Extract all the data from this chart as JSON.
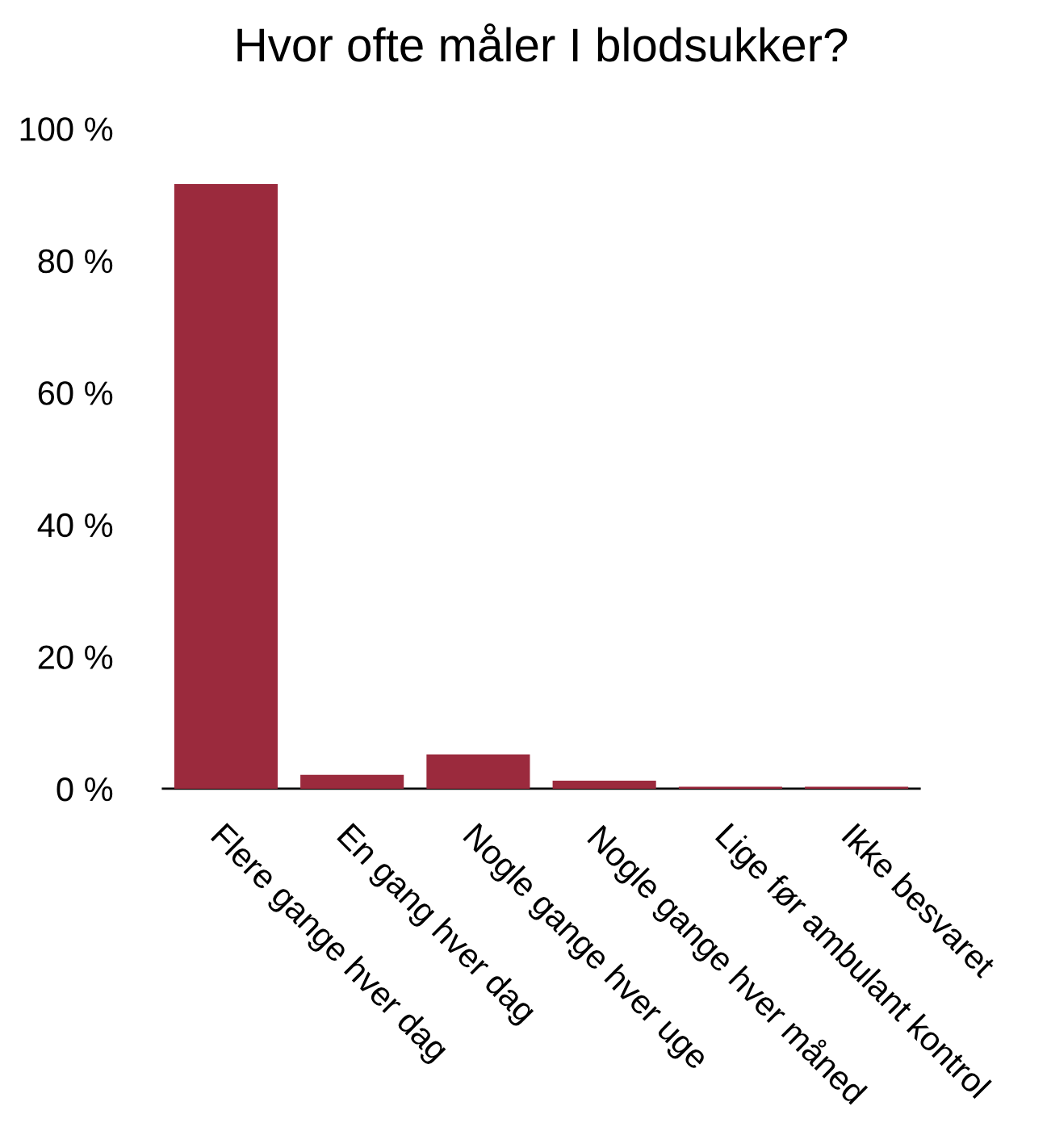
{
  "chart_data": {
    "type": "bar",
    "title": "Hvor ofte måler I blodsukker?",
    "categories": [
      "Flere gange hver dag",
      "En gang hver dag",
      "Nogle gange hver uge",
      "Nogle gange hver måned",
      "Lige før ambulant kontrol",
      "Ikke besvaret"
    ],
    "values": [
      91.6,
      2.1,
      5.2,
      1.2,
      0.3,
      0.3
    ],
    "color": "#9b2a3d",
    "ylim": [
      0,
      100
    ],
    "yticks": [
      {
        "value": 0,
        "label": "0 %"
      },
      {
        "value": 20,
        "label": "20 %"
      },
      {
        "value": 40,
        "label": "40 %"
      },
      {
        "value": 60,
        "label": "60 %"
      },
      {
        "value": 80,
        "label": "80 %"
      },
      {
        "value": 100,
        "label": "100 %"
      }
    ],
    "grid": false
  }
}
